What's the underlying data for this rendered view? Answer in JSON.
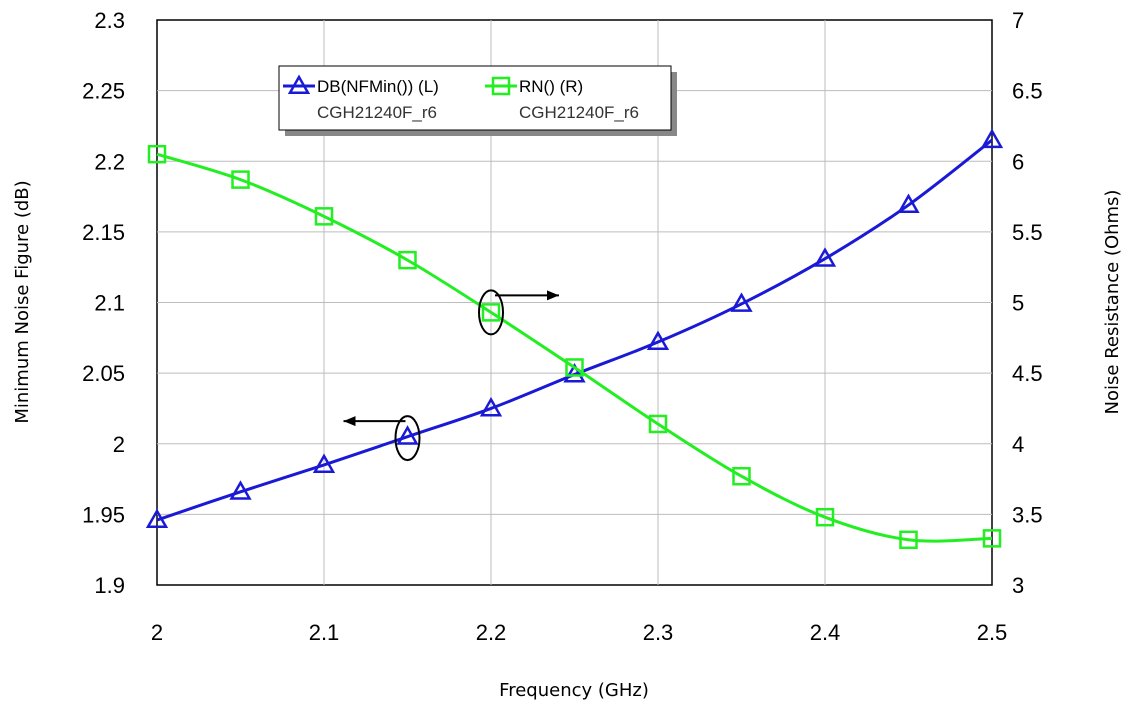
{
  "chart_data": {
    "type": "line",
    "xlabel": "Frequency (GHz)",
    "ylabel_left": "Minimum Noise Figure (dB)",
    "ylabel_right": "Noise Resistance (Ohms)",
    "xlim": [
      2,
      2.5
    ],
    "ylim_left": [
      1.9,
      2.3
    ],
    "ylim_right": [
      3,
      7
    ],
    "x_ticks": [
      "2",
      "2.1",
      "2.2",
      "2.3",
      "2.4",
      "2.5"
    ],
    "y_left_ticks": [
      "1.9",
      "1.95",
      "2",
      "2.05",
      "2.1",
      "2.15",
      "2.2",
      "2.25",
      "2.3"
    ],
    "y_right_ticks": [
      "3",
      "3.5",
      "4",
      "4.5",
      "5",
      "5.5",
      "6",
      "6.5",
      "7"
    ],
    "grid": true,
    "legend_position": "top-left",
    "series": [
      {
        "name": "DB(NFMin()) (L)",
        "sub": "CGH21240F_r6",
        "axis": "left",
        "color": "#1a1ad6",
        "marker": "triangle",
        "x": [
          2.0,
          2.05,
          2.1,
          2.15,
          2.2,
          2.25,
          2.3,
          2.35,
          2.4,
          2.45,
          2.5
        ],
        "values": [
          1.946,
          1.966,
          1.985,
          2.005,
          2.025,
          2.049,
          2.072,
          2.099,
          2.131,
          2.169,
          2.215
        ]
      },
      {
        "name": "RN() (R)",
        "sub": "CGH21240F_r6",
        "axis": "right",
        "color": "#22ee22",
        "marker": "square",
        "x": [
          2.0,
          2.05,
          2.1,
          2.15,
          2.2,
          2.25,
          2.3,
          2.35,
          2.4,
          2.45,
          2.5
        ],
        "values": [
          6.05,
          5.87,
          5.61,
          5.3,
          4.93,
          4.54,
          4.14,
          3.77,
          3.48,
          3.32,
          3.33
        ]
      }
    ],
    "annotations": [
      {
        "type": "arrow",
        "series_index": 1,
        "direction": "right",
        "x": 2.2,
        "y": 4.93,
        "axis": "right"
      },
      {
        "type": "arrow",
        "series_index": 0,
        "direction": "left",
        "x": 2.15,
        "y": 2.004,
        "axis": "left"
      }
    ]
  }
}
